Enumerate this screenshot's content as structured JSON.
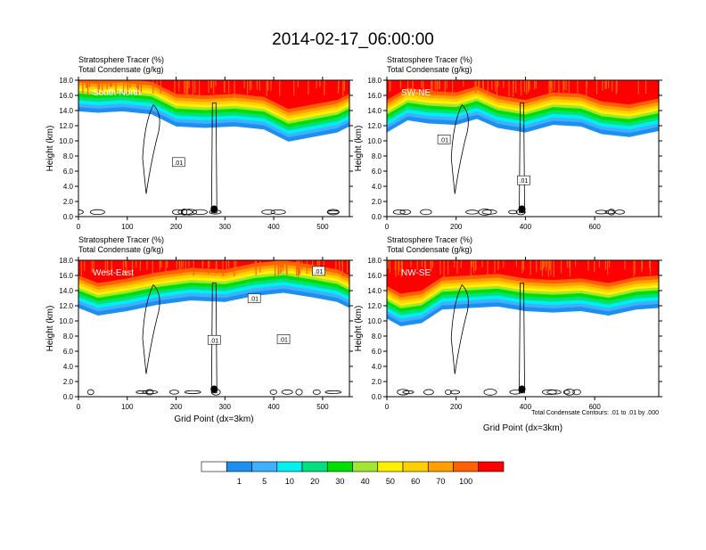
{
  "title": "2014-02-17_06:00:00",
  "colors": {
    "levels": [
      "#ffffff",
      "#1e8fef",
      "#3fafff",
      "#00f0f0",
      "#00e080",
      "#00e000",
      "#a0e632",
      "#fff000",
      "#ffd000",
      "#ffa000",
      "#ff6000",
      "#ff0000"
    ],
    "contour": "#000000"
  },
  "chart_data": [
    {
      "type": "heatmap",
      "label": "South-North",
      "title_line1": "Stratosphere Tracer   (%)",
      "title_line2": "Total Condensate   (g/kg)",
      "ylabel": "Height (km)",
      "xlabel": "",
      "xlim": [
        0,
        555
      ],
      "ylim": [
        0,
        18
      ],
      "xticks": [
        0,
        100,
        200,
        300,
        400,
        500
      ],
      "yticks": [
        "0.0",
        "2.0",
        "4.0",
        "6.0",
        "8.0",
        "10.0",
        "12.0",
        "14.0",
        "16.0",
        "18.0"
      ],
      "contour_labels": [
        {
          "text": ".01",
          "x": 205,
          "y": 7.2
        }
      ],
      "marker": {
        "x": 278,
        "y": 1.0
      },
      "tropopause": [
        [
          0,
          14.8
        ],
        [
          40,
          14.6
        ],
        [
          90,
          14.8
        ],
        [
          150,
          14.4
        ],
        [
          200,
          12.8
        ],
        [
          260,
          12.6
        ],
        [
          320,
          12.8
        ],
        [
          380,
          12.4
        ],
        [
          430,
          10.8
        ],
        [
          480,
          11.4
        ],
        [
          530,
          12.0
        ],
        [
          555,
          12.8
        ]
      ]
    },
    {
      "type": "heatmap",
      "label": "SW-NE",
      "title_line1": "Stratosphere Tracer   (%)",
      "title_line2": "Total Condensate   (g/kg)",
      "ylabel": "Height (km)",
      "xlabel": "",
      "xlim": [
        0,
        785
      ],
      "ylim": [
        0,
        18
      ],
      "xticks": [
        0,
        200,
        400,
        600
      ],
      "yticks": [
        "0.0",
        "2.0",
        "4.0",
        "6.0",
        "8.0",
        "10.0",
        "12.0",
        "14.0",
        "16.0",
        "18.0"
      ],
      "contour_labels": [
        {
          "text": ".01",
          "x": 165,
          "y": 10.2
        },
        {
          "text": ".01",
          "x": 395,
          "y": 4.8
        }
      ],
      "marker": {
        "x": 390,
        "y": 1.0
      },
      "tropopause": [
        [
          0,
          12.0
        ],
        [
          60,
          13.6
        ],
        [
          120,
          13.2
        ],
        [
          200,
          13.0
        ],
        [
          260,
          13.8
        ],
        [
          320,
          12.6
        ],
        [
          400,
          12.0
        ],
        [
          480,
          13.0
        ],
        [
          560,
          12.8
        ],
        [
          620,
          11.8
        ],
        [
          700,
          11.4
        ],
        [
          785,
          12.2
        ]
      ]
    },
    {
      "type": "heatmap",
      "label": "West-East",
      "title_line1": "Stratosphere Tracer   (%)",
      "title_line2": "Total Condensate   (g/kg)",
      "ylabel": "Height (km)",
      "xlabel": "Grid Point (dx=3km)",
      "xlim": [
        0,
        555
      ],
      "ylim": [
        0,
        18
      ],
      "xticks": [
        0,
        100,
        200,
        300,
        400,
        500
      ],
      "yticks": [
        "0.0",
        "2.0",
        "4.0",
        "6.0",
        "8.0",
        "10.0",
        "12.0",
        "14.0",
        "16.0",
        "18.0"
      ],
      "contour_labels": [
        {
          "text": ".01",
          "x": 278,
          "y": 7.5
        },
        {
          "text": ".01",
          "x": 360,
          "y": 13.0
        },
        {
          "text": ".01",
          "x": 420,
          "y": 7.6
        },
        {
          "text": ".01",
          "x": 492,
          "y": 16.6
        }
      ],
      "marker": {
        "x": 278,
        "y": 1.0
      },
      "tropopause": [
        [
          0,
          12.6
        ],
        [
          40,
          11.6
        ],
        [
          100,
          12.2
        ],
        [
          160,
          13.0
        ],
        [
          230,
          13.6
        ],
        [
          300,
          13.4
        ],
        [
          360,
          14.2
        ],
        [
          420,
          14.6
        ],
        [
          480,
          14.0
        ],
        [
          530,
          13.4
        ],
        [
          555,
          12.6
        ]
      ]
    },
    {
      "type": "heatmap",
      "label": "NW-SE",
      "title_line1": "Stratosphere Tracer   (%)",
      "title_line2": "Total Condensate   (g/kg)",
      "ylabel": "Height (km)",
      "xlabel": "Grid Point (dx=3km)",
      "xlim": [
        0,
        785
      ],
      "ylim": [
        0,
        18
      ],
      "xticks": [
        0,
        200,
        400,
        600
      ],
      "yticks": [
        "0.0",
        "2.0",
        "4.0",
        "6.0",
        "8.0",
        "10.0",
        "12.0",
        "14.0",
        "16.0",
        "18.0"
      ],
      "contour_labels": [],
      "marker": {
        "x": 390,
        "y": 1.0
      },
      "tropopause": [
        [
          0,
          11.2
        ],
        [
          40,
          10.2
        ],
        [
          100,
          10.6
        ],
        [
          160,
          12.4
        ],
        [
          240,
          12.6
        ],
        [
          320,
          12.8
        ],
        [
          400,
          12.2
        ],
        [
          480,
          12.0
        ],
        [
          560,
          12.2
        ],
        [
          640,
          11.6
        ],
        [
          720,
          12.4
        ],
        [
          785,
          12.6
        ]
      ],
      "footnote": "Total Condensate Contours: .01 to .01 by .000"
    }
  ],
  "colorbar": {
    "levels": [
      1,
      5,
      10,
      20,
      30,
      40,
      50,
      60,
      70,
      100
    ],
    "labels": [
      "1",
      "5",
      "10",
      "20",
      "30",
      "40",
      "50",
      "60",
      "70",
      "100"
    ]
  }
}
